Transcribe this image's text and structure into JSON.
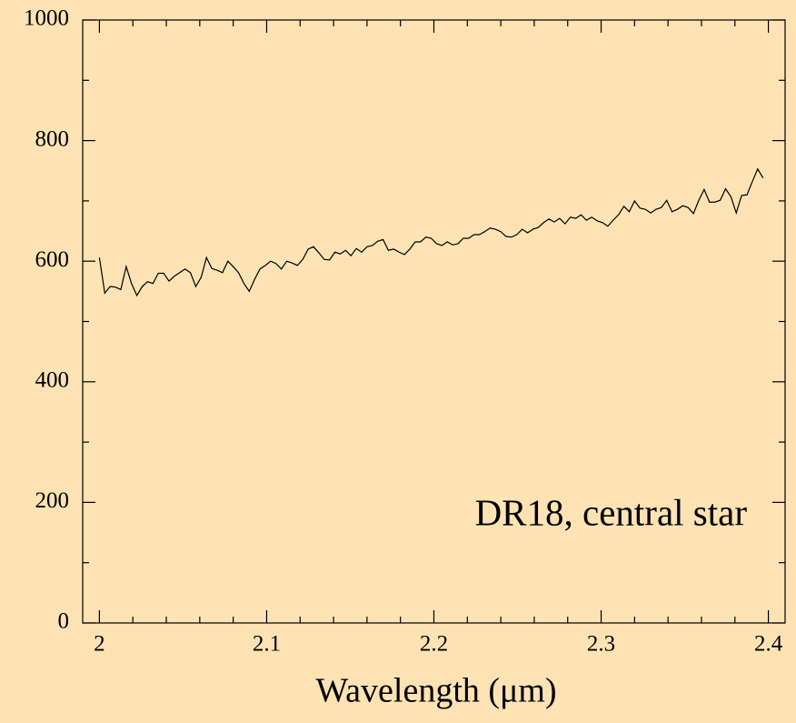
{
  "chart_data": {
    "type": "line",
    "annotation": "DR18, central star",
    "x_label": "Wavelength (μm)",
    "color": "#000000",
    "xlim": [
      1.99,
      2.41
    ],
    "ylim": [
      0,
      1000
    ],
    "xticks": [
      2,
      2.1,
      2.2,
      2.3,
      2.4
    ],
    "yticks": [
      0,
      200,
      400,
      600,
      800,
      1000
    ],
    "x_minor_ticks": [
      2.02,
      2.04,
      2.06,
      2.08,
      2.12,
      2.14,
      2.16,
      2.18,
      2.22,
      2.24,
      2.26,
      2.28,
      2.32,
      2.34,
      2.36,
      2.38
    ],
    "y_minor_ticks": [
      100,
      300,
      500,
      700,
      900
    ],
    "x": [
      2,
      2.0032,
      2.0064,
      2.0096,
      2.0128,
      2.016,
      2.0192,
      2.0224,
      2.0256,
      2.0288,
      2.032,
      2.0352,
      2.0384,
      2.0416,
      2.0448,
      2.048,
      2.0512,
      2.0544,
      2.0576,
      2.0608,
      2.064,
      2.0672,
      2.0704,
      2.0736,
      2.0768,
      2.08,
      2.0832,
      2.0864,
      2.0896,
      2.0928,
      2.096,
      2.0992,
      2.1024,
      2.1056,
      2.1088,
      2.112,
      2.1152,
      2.1184,
      2.1216,
      2.1248,
      2.128,
      2.1312,
      2.1344,
      2.1376,
      2.1408,
      2.144,
      2.1472,
      2.1504,
      2.1536,
      2.1568,
      2.16,
      2.1632,
      2.1664,
      2.1696,
      2.1728,
      2.176,
      2.1792,
      2.1824,
      2.1856,
      2.1888,
      2.192,
      2.1952,
      2.1984,
      2.2016,
      2.2048,
      2.208,
      2.2112,
      2.2144,
      2.2176,
      2.2208,
      2.224,
      2.2272,
      2.2304,
      2.2336,
      2.2368,
      2.24,
      2.2432,
      2.2464,
      2.2496,
      2.2528,
      2.256,
      2.2592,
      2.2624,
      2.2656,
      2.2688,
      2.272,
      2.2752,
      2.2784,
      2.2816,
      2.2848,
      2.288,
      2.2912,
      2.2944,
      2.2976,
      2.3008,
      2.304,
      2.3072,
      2.3104,
      2.3136,
      2.3168,
      2.32,
      2.3232,
      2.3264,
      2.3296,
      2.3328,
      2.336,
      2.3392,
      2.3424,
      2.3456,
      2.3488,
      2.352,
      2.3552,
      2.3584,
      2.3616,
      2.3648,
      2.368,
      2.3712,
      2.3744,
      2.3776,
      2.3808,
      2.384,
      2.3872,
      2.3904,
      2.3936,
      2.3968
    ],
    "values": [
      606,
      547,
      558,
      557,
      553,
      591,
      563,
      543,
      558,
      566,
      563,
      580,
      580,
      567,
      575,
      581,
      587,
      581,
      558,
      573,
      606,
      588,
      585,
      581,
      600,
      591,
      581,
      563,
      550,
      570,
      587,
      593,
      600,
      596,
      587,
      600,
      597,
      593,
      603,
      620,
      624,
      614,
      603,
      602,
      615,
      612,
      618,
      609,
      621,
      615,
      624,
      626,
      633,
      636,
      618,
      620,
      615,
      611,
      620,
      632,
      632,
      640,
      638,
      629,
      626,
      632,
      627,
      629,
      638,
      638,
      644,
      644,
      649,
      655,
      653,
      649,
      641,
      640,
      644,
      653,
      647,
      653,
      656,
      664,
      670,
      665,
      671,
      662,
      673,
      671,
      677,
      668,
      673,
      667,
      664,
      658,
      668,
      677,
      691,
      682,
      700,
      688,
      686,
      680,
      686,
      689,
      701,
      682,
      686,
      692,
      689,
      679,
      701,
      719,
      698,
      698,
      701,
      720,
      707,
      680,
      709,
      710,
      732,
      753,
      738
    ]
  }
}
